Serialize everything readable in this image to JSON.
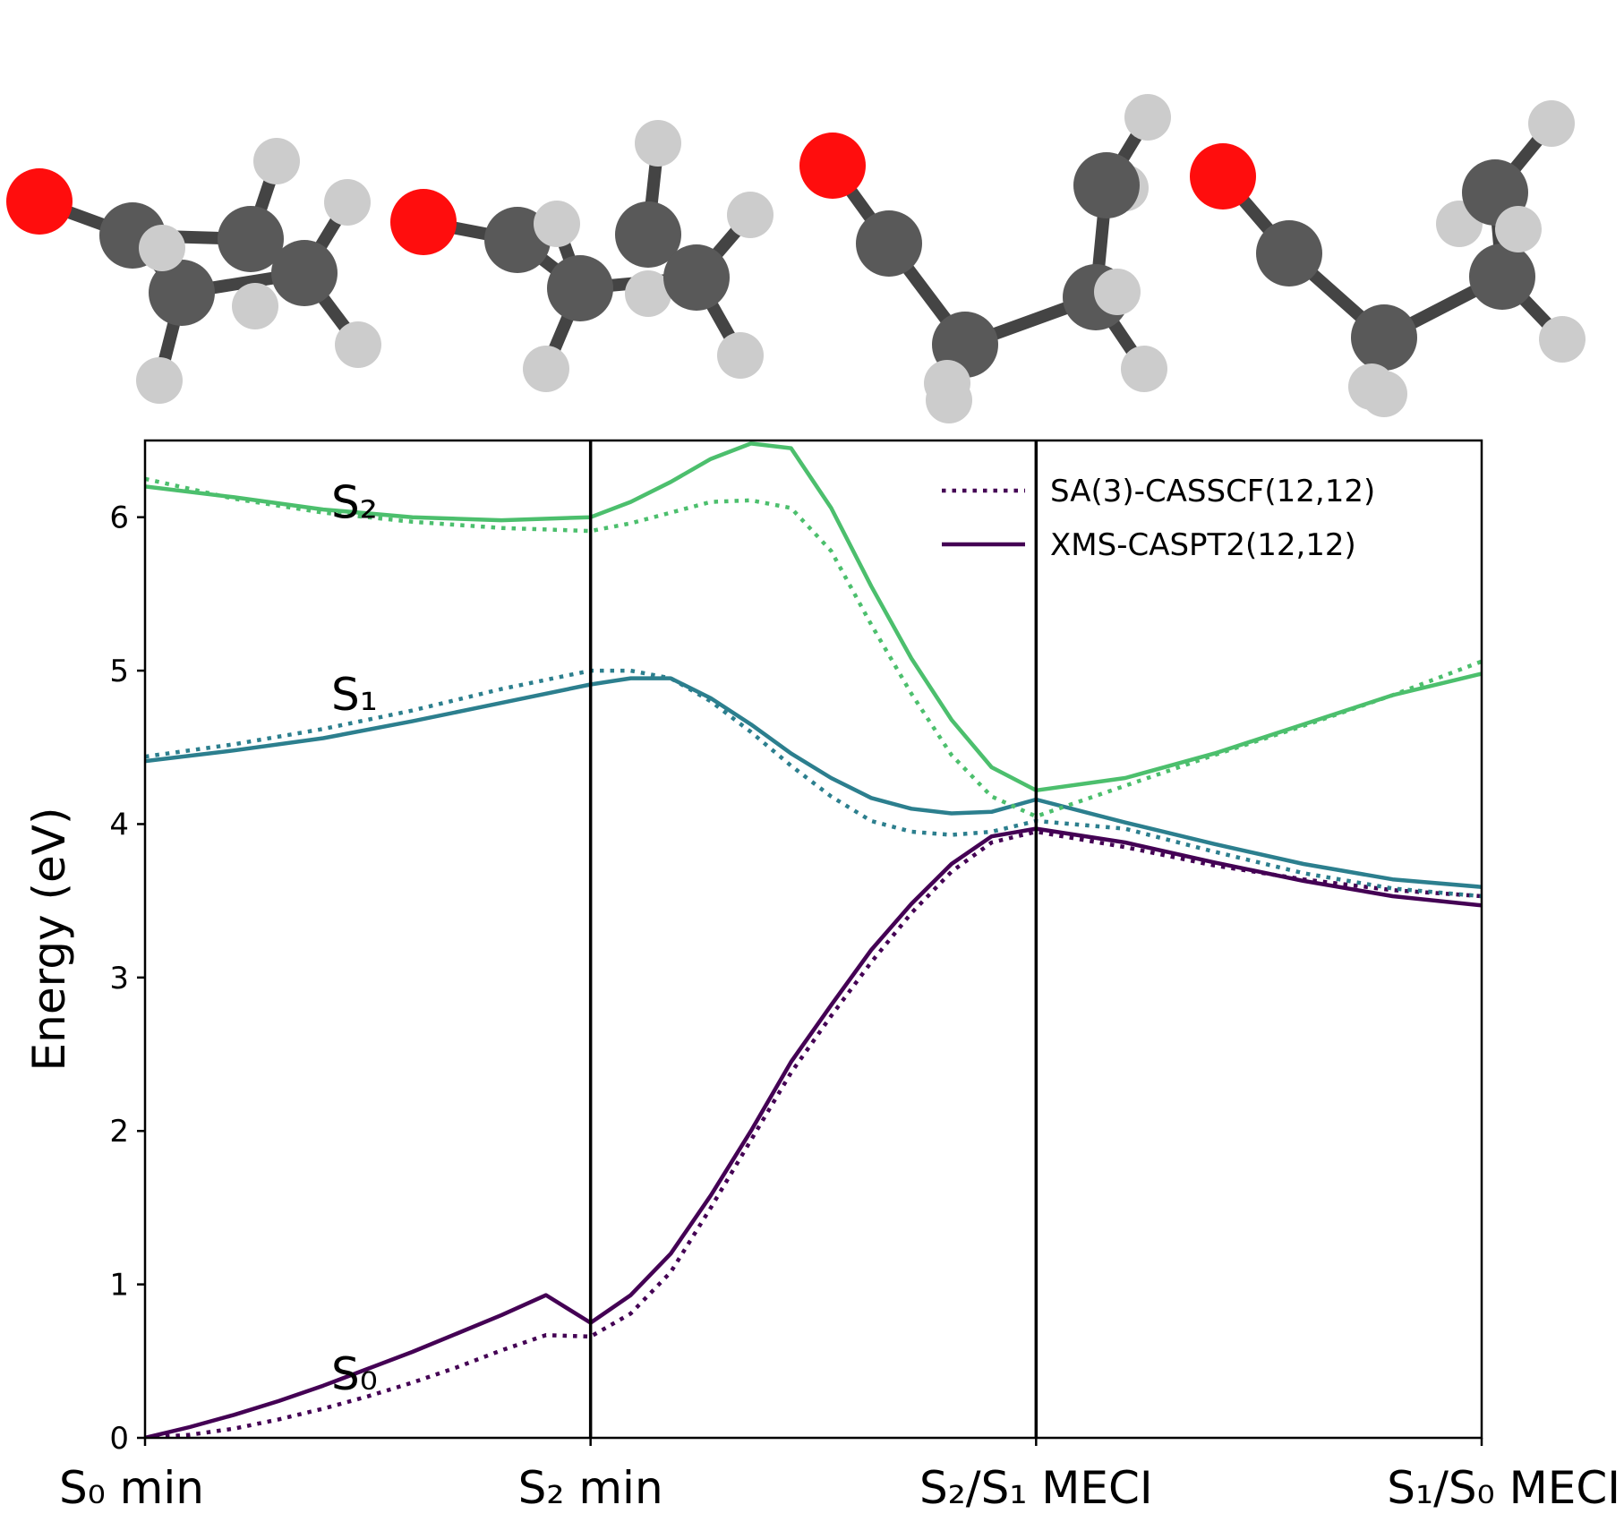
{
  "chart_data": {
    "type": "line",
    "ylabel": "Energy (eV)",
    "ylim": [
      0,
      6.5
    ],
    "yticks": [
      "0",
      "1",
      "2",
      "3",
      "4",
      "5",
      "6"
    ],
    "x_categories": [
      "S₀ min",
      "S₂ min",
      "S₂/S₁ MECI",
      "S₁/S₀ MECI"
    ],
    "x_range": [
      0,
      3
    ],
    "grid": false,
    "legend_position": "top-right",
    "legend": [
      {
        "label": "SA(3)-CASSCF(12,12)",
        "style": "dotted"
      },
      {
        "label": "XMS-CASPT2(12,12)",
        "style": "solid"
      }
    ],
    "state_labels": [
      {
        "text": "S₂",
        "x": 0.47,
        "y": 6.1
      },
      {
        "text": "S₁",
        "x": 0.47,
        "y": 4.85
      },
      {
        "text": "S₀",
        "x": 0.47,
        "y": 0.42
      }
    ],
    "colors": {
      "S0": "#440154",
      "S1": "#2c7f8e",
      "S2": "#4cbf6d"
    },
    "series": [
      {
        "state": "S0",
        "method": "XMS-CASPT2(12,12)",
        "style": "solid",
        "x": [
          0,
          0.1,
          0.2,
          0.3,
          0.4,
          0.5,
          0.6,
          0.7,
          0.8,
          0.9,
          1.0,
          1.09,
          1.18,
          1.27,
          1.36,
          1.45,
          1.54,
          1.63,
          1.72,
          1.81,
          1.9,
          2.0,
          2.2,
          2.4,
          2.6,
          2.8,
          3.0
        ],
        "y": [
          0,
          0.07,
          0.15,
          0.24,
          0.34,
          0.45,
          0.56,
          0.68,
          0.8,
          0.93,
          0.75,
          0.93,
          1.2,
          1.58,
          2.0,
          2.45,
          2.82,
          3.18,
          3.48,
          3.74,
          3.92,
          3.97,
          3.88,
          3.75,
          3.63,
          3.53,
          3.47
        ]
      },
      {
        "state": "S0",
        "method": "SA(3)-CASSCF(12,12)",
        "style": "dotted",
        "x": [
          0,
          0.1,
          0.2,
          0.3,
          0.4,
          0.5,
          0.6,
          0.7,
          0.8,
          0.9,
          1.0,
          1.09,
          1.18,
          1.27,
          1.36,
          1.45,
          1.54,
          1.63,
          1.72,
          1.81,
          1.9,
          2.0,
          2.2,
          2.4,
          2.6,
          2.8,
          3.0
        ],
        "y": [
          0,
          0.02,
          0.06,
          0.12,
          0.19,
          0.27,
          0.36,
          0.46,
          0.57,
          0.67,
          0.66,
          0.81,
          1.08,
          1.5,
          1.94,
          2.38,
          2.75,
          3.1,
          3.42,
          3.69,
          3.88,
          3.95,
          3.85,
          3.73,
          3.64,
          3.57,
          3.53
        ]
      },
      {
        "state": "S1",
        "method": "XMS-CASPT2(12,12)",
        "style": "solid",
        "x": [
          0,
          0.2,
          0.4,
          0.6,
          0.8,
          1.0,
          1.09,
          1.18,
          1.27,
          1.36,
          1.45,
          1.54,
          1.63,
          1.72,
          1.81,
          1.9,
          2.0,
          2.2,
          2.4,
          2.6,
          2.8,
          3.0
        ],
        "y": [
          4.41,
          4.48,
          4.56,
          4.67,
          4.79,
          4.91,
          4.95,
          4.95,
          4.82,
          4.65,
          4.46,
          4.3,
          4.17,
          4.1,
          4.07,
          4.08,
          4.16,
          4.01,
          3.87,
          3.74,
          3.64,
          3.59
        ]
      },
      {
        "state": "S1",
        "method": "SA(3)-CASSCF(12,12)",
        "style": "dotted",
        "x": [
          0,
          0.2,
          0.4,
          0.6,
          0.8,
          1.0,
          1.09,
          1.18,
          1.27,
          1.36,
          1.45,
          1.54,
          1.63,
          1.72,
          1.81,
          1.9,
          2.0,
          2.2,
          2.4,
          2.6,
          2.8,
          3.0
        ],
        "y": [
          4.44,
          4.52,
          4.62,
          4.74,
          4.88,
          5.0,
          5.0,
          4.95,
          4.8,
          4.6,
          4.38,
          4.18,
          4.02,
          3.95,
          3.93,
          3.95,
          4.02,
          3.97,
          3.82,
          3.68,
          3.58,
          3.53
        ]
      },
      {
        "state": "S2",
        "method": "XMS-CASPT2(12,12)",
        "style": "solid",
        "x": [
          0,
          0.2,
          0.4,
          0.6,
          0.8,
          1.0,
          1.09,
          1.18,
          1.27,
          1.36,
          1.45,
          1.54,
          1.63,
          1.72,
          1.81,
          1.9,
          2.0,
          2.2,
          2.4,
          2.6,
          2.8,
          3.0
        ],
        "y": [
          6.2,
          6.13,
          6.05,
          6.0,
          5.98,
          6.0,
          6.1,
          6.23,
          6.38,
          6.48,
          6.45,
          6.06,
          5.55,
          5.08,
          4.68,
          4.37,
          4.22,
          4.3,
          4.46,
          4.65,
          4.84,
          4.98
        ]
      },
      {
        "state": "S2",
        "method": "SA(3)-CASSCF(12,12)",
        "style": "dotted",
        "x": [
          0,
          0.2,
          0.4,
          0.6,
          0.8,
          1.0,
          1.09,
          1.18,
          1.27,
          1.36,
          1.45,
          1.54,
          1.63,
          1.72,
          1.81,
          1.9,
          2.0,
          2.2,
          2.4,
          2.6,
          2.8,
          3.0
        ],
        "y": [
          6.25,
          6.12,
          6.03,
          5.97,
          5.93,
          5.91,
          5.96,
          6.03,
          6.1,
          6.11,
          6.06,
          5.78,
          5.3,
          4.85,
          4.45,
          4.18,
          4.05,
          4.25,
          4.45,
          4.64,
          4.84,
          5.06
        ]
      }
    ],
    "dividers_x": [
      1,
      2
    ]
  },
  "molecule_panels": [
    {
      "name": "S0 min geometry"
    },
    {
      "name": "S2 min geometry"
    },
    {
      "name": "S2/S1 MECI geometry"
    },
    {
      "name": "S1/S0 MECI geometry"
    }
  ]
}
